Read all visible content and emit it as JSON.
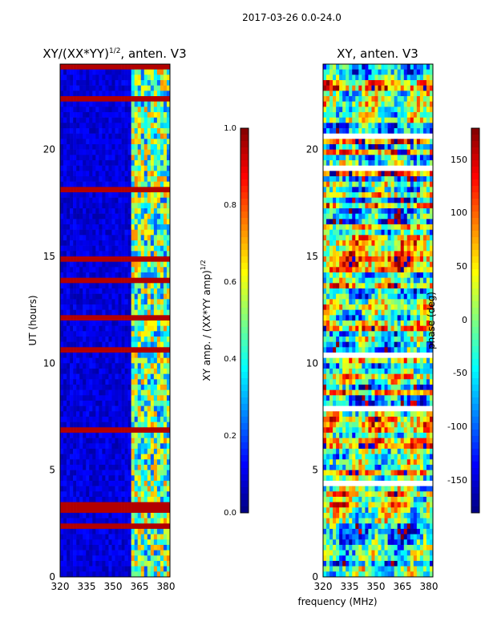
{
  "suptitle": "2017-03-26 0.0-24.0",
  "shared": {
    "xlabel": "frequency (MHz)",
    "x_ticks": [
      "320",
      "335",
      "350",
      "365",
      "380"
    ],
    "y_ticks": [
      "0",
      "5",
      "10",
      "15",
      "20"
    ]
  },
  "colors": {
    "jet": [
      "#00007f",
      "#0000ff",
      "#007fff",
      "#00ffff",
      "#7fff7f",
      "#ffff00",
      "#ff7f00",
      "#ff0000",
      "#7f0000"
    ],
    "axis": "#000000",
    "stripe": "#8b0000"
  },
  "chart_data": [
    {
      "type": "heatmap",
      "title_main": "XY/(XX*YY)",
      "title_sup": "1/2",
      "title_rest": ", anten. V3",
      "ylabel": "UT (hours)",
      "x_range_mhz": [
        320,
        382
      ],
      "y_range_hours": [
        0,
        24
      ],
      "value_range": [
        0,
        1
      ],
      "rfi_band_start_mhz": 360,
      "colorbar": {
        "label": "XY amp. / (XX*YY amp)",
        "label_sup": "1/2",
        "range": [
          0.0,
          1.0
        ],
        "ticks": [
          "0.0",
          "0.2",
          "0.4",
          "0.6",
          "0.8",
          "1.0"
        ]
      }
    },
    {
      "type": "heatmap",
      "title": "XY, anten. V3",
      "x_range_mhz": [
        320,
        382
      ],
      "y_range_hours": [
        0,
        24
      ],
      "value_range": [
        -180,
        180
      ],
      "colorbar": {
        "label": "phase (deg)",
        "range": [
          -180,
          180
        ],
        "ticks": [
          "-150",
          "-100",
          "-50",
          "0",
          "50",
          "100",
          "150"
        ]
      }
    }
  ]
}
